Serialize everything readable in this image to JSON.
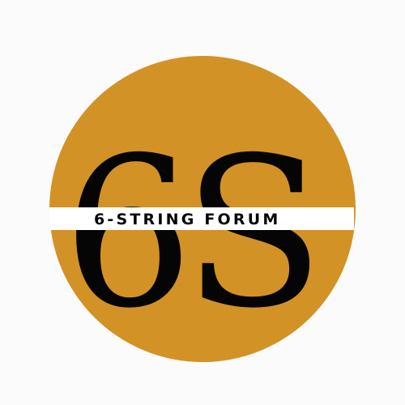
{
  "logo": {
    "monogram": "6S",
    "band_text": "6-STRING FORUM",
    "colors": {
      "background": "#fbfbfb",
      "circle": "#d39225",
      "ink": "#050505",
      "band": "#ffffff"
    }
  }
}
